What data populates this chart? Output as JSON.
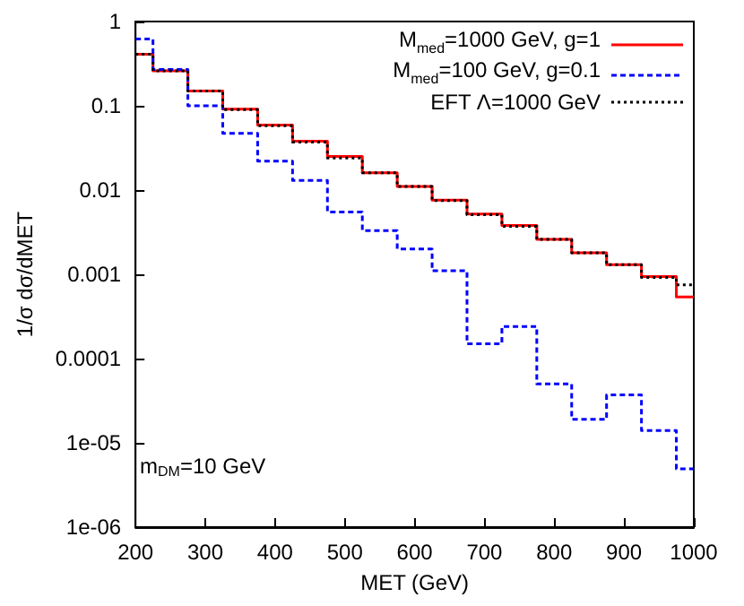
{
  "chart_data": {
    "type": "histogram",
    "xlabel": "MET (GeV)",
    "ylabel": "1/σ dσ/dMET",
    "bins": [
      200,
      225,
      275,
      325,
      375,
      425,
      475,
      525,
      575,
      625,
      675,
      725,
      775,
      825,
      875,
      925,
      975,
      1000
    ],
    "series": [
      {
        "name": "M$_{med}$=1000 GeV, g=1",
        "color": "#ff0000",
        "line_style": "solid",
        "values": [
          0.41,
          0.26,
          0.15,
          0.091,
          0.059,
          0.038,
          0.025,
          0.016,
          0.011,
          0.0076,
          0.0052,
          0.0038,
          0.0026,
          0.0018,
          0.0013,
          0.00094,
          0.00054
        ]
      },
      {
        "name": "M$_{med}$=100 GeV,  g=0.1",
        "color": "#0000ff",
        "line_style": "dashed",
        "values": [
          0.62,
          0.27,
          0.1,
          0.047,
          0.022,
          0.013,
          0.0055,
          0.0033,
          0.002,
          0.0011,
          0.00015,
          0.00024,
          5e-05,
          1.9e-05,
          3.7e-05,
          1.4e-05,
          4.9e-06
        ]
      },
      {
        "name": "EFT Λ=1000 GeV",
        "color": "#000000",
        "line_style": "dotted",
        "values": [
          0.41,
          0.26,
          0.15,
          0.09,
          0.058,
          0.037,
          0.024,
          0.016,
          0.011,
          0.0075,
          0.0051,
          0.0037,
          0.0026,
          0.0018,
          0.0013,
          0.00092,
          0.00075
        ]
      }
    ],
    "xlim": [
      200,
      1000
    ],
    "xticks": [
      200,
      300,
      400,
      500,
      600,
      700,
      800,
      900,
      1000
    ],
    "ylim": [
      1e-06,
      1
    ],
    "yticks": [
      {
        "value": 1e-06,
        "label": "1e-06"
      },
      {
        "value": 1e-05,
        "label": "1e-05"
      },
      {
        "value": 0.0001,
        "label": "0.0001"
      },
      {
        "value": 0.001,
        "label": "0.001"
      },
      {
        "value": 0.01,
        "label": "0.01"
      },
      {
        "value": 0.1,
        "label": "0.1"
      },
      {
        "value": 1,
        "label": "1"
      }
    ],
    "log": "y",
    "grid": false,
    "legend": "top right",
    "marker": "none",
    "annotations": [
      "m$_{DM}$=10 GeV"
    ]
  }
}
